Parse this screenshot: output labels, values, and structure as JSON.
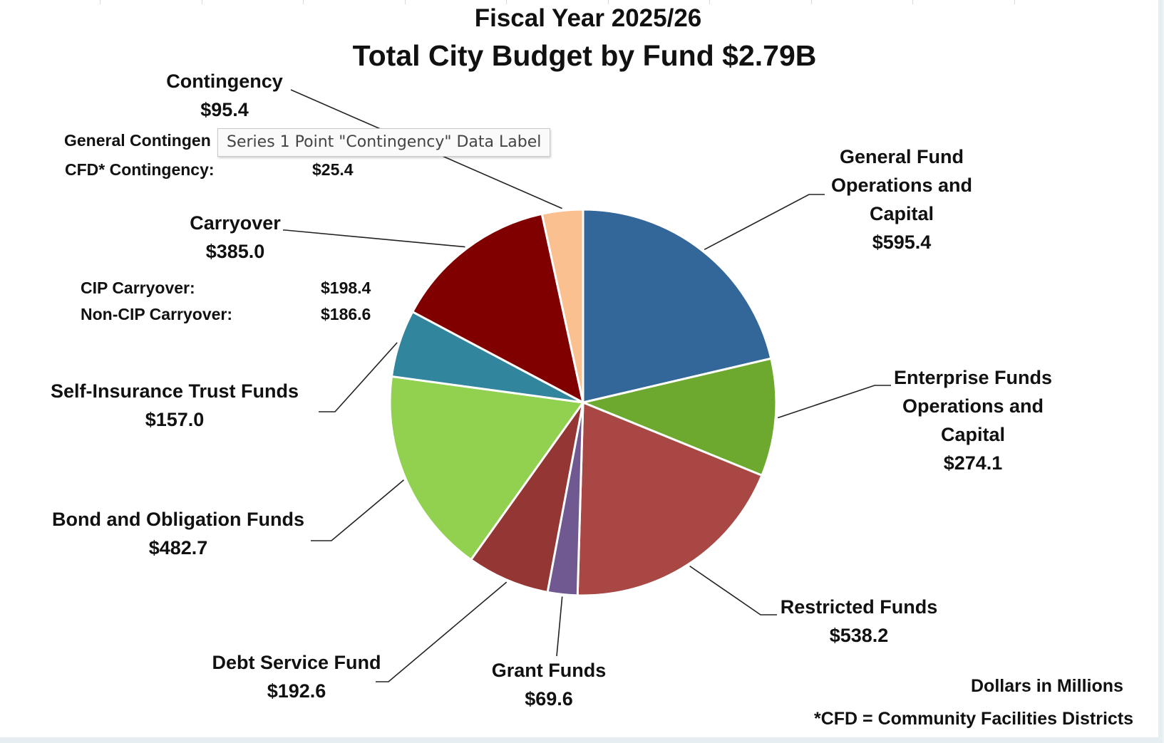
{
  "chart_data": {
    "type": "pie",
    "title": "Fiscal Year 2025/26",
    "subtitle": "Total City Budget by Fund $2.79B",
    "series_label": "Series 1",
    "slices": [
      {
        "label": "General Fund Operations and Capital",
        "value_label": "$595.4",
        "value": 595.4,
        "color": "#346799"
      },
      {
        "label": "Enterprise Funds Operations and Capital",
        "value_label": "$274.1",
        "value": 274.1,
        "color": "#6ea92f"
      },
      {
        "label": "Restricted Funds",
        "value_label": "$538.2",
        "value": 538.2,
        "color": "#a84744"
      },
      {
        "label": "Grant Funds",
        "value_label": "$69.6",
        "value": 69.6,
        "color": "#705990"
      },
      {
        "label": "Debt Service Fund",
        "value_label": "$192.6",
        "value": 192.6,
        "color": "#943634"
      },
      {
        "label": "Bond and Obligation Funds",
        "value_label": "$482.7",
        "value": 482.7,
        "color": "#92d050"
      },
      {
        "label": "Self-Insurance Trust Funds",
        "value_label": "$157.0",
        "value": 157.0,
        "color": "#31859c"
      },
      {
        "label": "Carryover",
        "value_label": "$385.0",
        "value": 385.0,
        "color": "#800000"
      },
      {
        "label": "Contingency",
        "value_label": "$95.4",
        "value": 95.4,
        "color": "#fac090"
      }
    ],
    "sub_items": {
      "contingency": [
        {
          "label": "General Contingen",
          "value": ""
        },
        {
          "label": "CFD* Contingency:",
          "value": "$25.4"
        }
      ],
      "carryover": [
        {
          "label": "CIP Carryover:",
          "value": "$198.4"
        },
        {
          "label": "Non-CIP Carryover:",
          "value": "$186.6"
        }
      ]
    },
    "notes": [
      "Dollars in Millions",
      "*CFD = Community Facilities Districts"
    ],
    "legend": "none"
  },
  "tooltip": {
    "text": "Series 1 Point \"Contingency\" Data Label"
  }
}
